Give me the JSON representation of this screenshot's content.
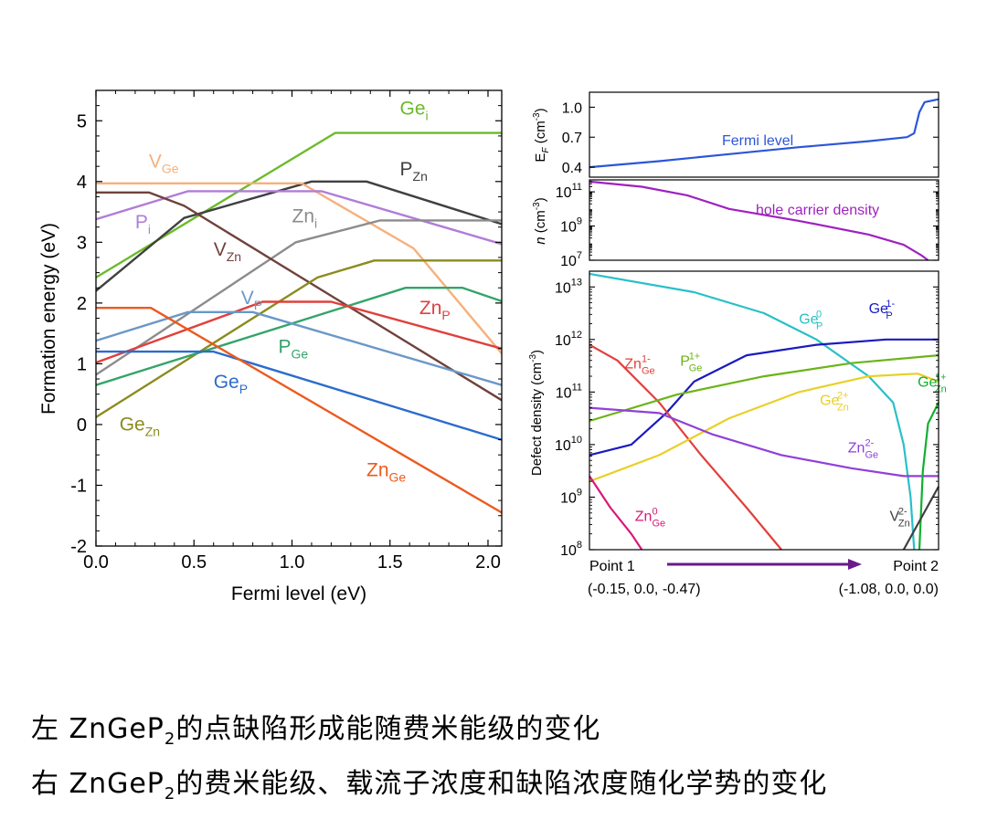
{
  "caption": {
    "line1": {
      "prefix": "左 ZnGeP",
      "sub": "2",
      "suffix": "的点缺陷形成能随费米能级的变化"
    },
    "line2": {
      "prefix": "右 ZnGeP",
      "sub": "2",
      "suffix": "的费米能级、载流子浓度和缺陷浓度随化学势的变化"
    }
  },
  "chart_data": [
    {
      "type": "line",
      "xlabel": "Fermi level (eV)",
      "ylabel": "Formation energy (eV)",
      "xlim": [
        0,
        2.07
      ],
      "ylim": [
        -2,
        5.5
      ],
      "xticks": [
        "0.0",
        "0.5",
        "1.0",
        "1.5",
        "2.0"
      ],
      "yticks": [
        "-2",
        "-1",
        "0",
        "1",
        "2",
        "3",
        "4",
        "5"
      ],
      "series": [
        {
          "base": "Ge",
          "sub": "i",
          "color": "#6abb2a",
          "points": [
            [
              0,
              2.42
            ],
            [
              1.22,
              4.8
            ],
            [
              2.07,
              4.8
            ]
          ],
          "label_at": [
            1.55,
            5.1
          ]
        },
        {
          "base": "P",
          "sub": "Zn",
          "color": "#404040",
          "points": [
            [
              0,
              2.2
            ],
            [
              0.45,
              3.4
            ],
            [
              1.1,
              4.0
            ],
            [
              1.38,
              4.0
            ],
            [
              2.07,
              3.3
            ]
          ],
          "label_at": [
            1.55,
            4.1
          ]
        },
        {
          "base": "V",
          "sub": "Ge",
          "color": "#f6b07c",
          "points": [
            [
              0,
              3.97
            ],
            [
              1.05,
              3.97
            ],
            [
              1.62,
              2.9
            ],
            [
              2.07,
              1.17
            ]
          ],
          "label_at": [
            0.27,
            4.23
          ]
        },
        {
          "base": "P",
          "sub": "i",
          "color": "#b07cd8",
          "points": [
            [
              0,
              3.38
            ],
            [
              0.47,
              3.84
            ],
            [
              1.15,
              3.84
            ],
            [
              2.07,
              2.97
            ]
          ],
          "label_at": [
            0.2,
            3.23
          ]
        },
        {
          "base": "Zn",
          "sub": "i",
          "color": "#8c8c8c",
          "points": [
            [
              0,
              0.82
            ],
            [
              1.02,
              3.0
            ],
            [
              1.45,
              3.36
            ],
            [
              2.07,
              3.36
            ]
          ],
          "label_at": [
            1.0,
            3.33
          ]
        },
        {
          "base": "V",
          "sub": "Zn",
          "color": "#70423c",
          "points": [
            [
              0,
              3.82
            ],
            [
              0.27,
              3.82
            ],
            [
              0.45,
              3.6
            ],
            [
              2.07,
              0.4
            ]
          ],
          "label_at": [
            0.6,
            2.78
          ]
        },
        {
          "base": "Ge",
          "sub": "Zn",
          "color": "#8b8b1e",
          "points": [
            [
              0,
              0.12
            ],
            [
              1.13,
              2.42
            ],
            [
              1.42,
              2.7
            ],
            [
              2.07,
              2.7
            ]
          ],
          "label_at": [
            0.12,
            -0.1
          ]
        },
        {
          "base": "P",
          "sub": "Ge",
          "color": "#34a46a",
          "points": [
            [
              0,
              0.65
            ],
            [
              1.58,
              2.25
            ],
            [
              1.87,
              2.25
            ],
            [
              2.07,
              2.03
            ]
          ],
          "label_at": [
            0.93,
            1.18
          ]
        },
        {
          "base": "Zn",
          "sub": "P",
          "color": "#e0403c",
          "points": [
            [
              0,
              1.02
            ],
            [
              0.85,
              2.02
            ],
            [
              1.2,
              2.02
            ],
            [
              2.07,
              1.25
            ]
          ],
          "label_at": [
            1.65,
            1.82
          ]
        },
        {
          "base": "V",
          "sub": "P",
          "color": "#6a98c8",
          "points": [
            [
              0,
              1.38
            ],
            [
              0.47,
              1.85
            ],
            [
              0.8,
              1.85
            ],
            [
              2.07,
              0.65
            ]
          ],
          "label_at": [
            0.74,
            1.98
          ]
        },
        {
          "base": "Ge",
          "sub": "P",
          "color": "#2c6ccc",
          "points": [
            [
              0,
              1.2
            ],
            [
              0.6,
              1.2
            ],
            [
              2.07,
              -0.25
            ]
          ],
          "label_at": [
            0.6,
            0.6
          ]
        },
        {
          "base": "Zn",
          "sub": "Ge",
          "color": "#ec5a1e",
          "points": [
            [
              0,
              1.92
            ],
            [
              0.28,
              1.92
            ],
            [
              2.07,
              -1.45
            ]
          ],
          "label_at": [
            1.38,
            -0.85
          ]
        }
      ]
    },
    {
      "type": "line",
      "ylabel": "E_F (cm-3)",
      "ylim": [
        0.3,
        1.15
      ],
      "yticks": [
        "0.4",
        "0.7",
        "1.0"
      ],
      "series": [
        {
          "name": "Fermi level",
          "color": "#2c56d8",
          "points": [
            [
              0,
              0.4
            ],
            [
              0.2,
              0.46
            ],
            [
              0.4,
              0.53
            ],
            [
              0.6,
              0.6
            ],
            [
              0.8,
              0.66
            ],
            [
              0.91,
              0.7
            ],
            [
              0.93,
              0.74
            ],
            [
              0.945,
              0.95
            ],
            [
              0.96,
              1.05
            ],
            [
              1.0,
              1.08
            ]
          ]
        }
      ]
    },
    {
      "type": "line",
      "ylabel": "n (cm-3)",
      "yscale": "log",
      "ylim": [
        7,
        11.7
      ],
      "yticks": [
        {
          "base": "10",
          "exp": "7"
        },
        {
          "base": "10",
          "exp": "9"
        },
        {
          "base": "10",
          "exp": "11"
        }
      ],
      "series": [
        {
          "name": "hole carrier density",
          "color": "#a020c0",
          "points": [
            [
              0,
              11.6
            ],
            [
              0.15,
              11.3
            ],
            [
              0.28,
              10.8
            ],
            [
              0.4,
              10.0
            ],
            [
              0.6,
              9.3
            ],
            [
              0.8,
              8.5
            ],
            [
              0.9,
              7.9
            ],
            [
              0.95,
              7.3
            ],
            [
              0.97,
              7.0
            ]
          ]
        }
      ]
    },
    {
      "type": "line",
      "ylabel": "Defect density (cm-3)",
      "yscale": "log",
      "ylim": [
        8,
        13.3
      ],
      "yticks": [
        {
          "base": "10",
          "exp": "8"
        },
        {
          "base": "10",
          "exp": "9"
        },
        {
          "base": "10",
          "exp": "10"
        },
        {
          "base": "10",
          "exp": "11"
        },
        {
          "base": "10",
          "exp": "12"
        },
        {
          "base": "10",
          "exp": "13"
        }
      ],
      "xstart": {
        "name": "Point 1",
        "coords": "(-0.15, 0.0, -0.47)"
      },
      "xend": {
        "name": "Point 2",
        "coords": "(-1.08, 0.0, 0.0)"
      },
      "arrow_color": "#6a1a8a",
      "series": [
        {
          "base": "Ge",
          "sub": "P",
          "sup": "0",
          "color": "#28c0c8",
          "points": [
            [
              0,
              13.25
            ],
            [
              0.3,
              12.9
            ],
            [
              0.5,
              12.5
            ],
            [
              0.65,
              12.0
            ],
            [
              0.8,
              11.3
            ],
            [
              0.87,
              10.8
            ],
            [
              0.9,
              10.0
            ],
            [
              0.92,
              9.0
            ],
            [
              0.93,
              8.0
            ]
          ],
          "label_at": [
            0.6,
            12.3
          ]
        },
        {
          "base": "Ge",
          "sub": "P",
          "sup": "1-",
          "color": "#1a1ac0",
          "points": [
            [
              0,
              9.8
            ],
            [
              0.12,
              10.0
            ],
            [
              0.22,
              10.6
            ],
            [
              0.3,
              11.2
            ],
            [
              0.45,
              11.7
            ],
            [
              0.65,
              11.9
            ],
            [
              0.85,
              12.0
            ],
            [
              1.0,
              12.0
            ]
          ],
          "label_at": [
            0.8,
            12.5
          ]
        },
        {
          "base": "Zn",
          "sub": "Ge",
          "sup": "1-",
          "color": "#e0403c",
          "points": [
            [
              0,
              11.9
            ],
            [
              0.08,
              11.6
            ],
            [
              0.2,
              10.8
            ],
            [
              0.32,
              9.8
            ],
            [
              0.45,
              8.8
            ],
            [
              0.55,
              8.0
            ]
          ],
          "label_at": [
            0.1,
            11.45
          ]
        },
        {
          "base": "P",
          "sub": "Ge",
          "sup": "1+",
          "color": "#6ab418",
          "points": [
            [
              0,
              10.45
            ],
            [
              0.25,
              10.95
            ],
            [
              0.5,
              11.3
            ],
            [
              0.75,
              11.55
            ],
            [
              1.0,
              11.7
            ]
          ],
          "label_at": [
            0.26,
            11.5
          ]
        },
        {
          "base": "Ge",
          "sub": "Zn",
          "sup": "2+",
          "color": "#e8d028",
          "points": [
            [
              0,
              9.3
            ],
            [
              0.2,
              9.8
            ],
            [
              0.4,
              10.5
            ],
            [
              0.6,
              11.0
            ],
            [
              0.8,
              11.3
            ],
            [
              0.94,
              11.35
            ],
            [
              1.0,
              11.2
            ]
          ],
          "label_at": [
            0.66,
            10.75
          ]
        },
        {
          "base": "Zn",
          "sub": "Ge",
          "sup": "2-",
          "color": "#9040d8",
          "points": [
            [
              0,
              10.7
            ],
            [
              0.2,
              10.6
            ],
            [
              0.35,
              10.2
            ],
            [
              0.55,
              9.8
            ],
            [
              0.75,
              9.55
            ],
            [
              0.9,
              9.4
            ],
            [
              1.0,
              9.4
            ]
          ],
          "label_at": [
            0.74,
            9.85
          ]
        },
        {
          "base": "Ge",
          "sub": "Zn",
          "sup": "1+",
          "color": "#10b030",
          "points": [
            [
              0.945,
              8.0
            ],
            [
              0.955,
              9.5
            ],
            [
              0.97,
              10.4
            ],
            [
              1.0,
              10.8
            ]
          ],
          "label_at": [
            0.94,
            11.1
          ]
        },
        {
          "base": "V",
          "sub": "Zn",
          "sup": "2-",
          "color": "#404040",
          "points": [
            [
              0.9,
              8.0
            ],
            [
              0.95,
              8.6
            ],
            [
              1.0,
              9.2
            ]
          ],
          "label_at": [
            0.86,
            8.55
          ]
        },
        {
          "base": "Zn",
          "sub": "Ge",
          "sup": "0",
          "color": "#d81878",
          "points": [
            [
              0,
              9.4
            ],
            [
              0.06,
              8.8
            ],
            [
              0.12,
              8.3
            ],
            [
              0.15,
              8.0
            ]
          ],
          "label_at": [
            0.13,
            8.55
          ]
        }
      ]
    }
  ]
}
